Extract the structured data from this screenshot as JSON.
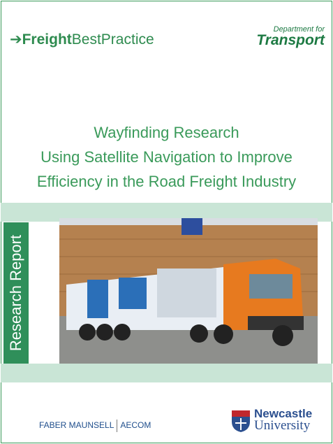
{
  "header": {
    "logo": {
      "bold": "Freight",
      "regular": "BestPractice"
    },
    "department": {
      "line1": "Department for",
      "line2": "Transport"
    }
  },
  "title": [
    "Wayfinding Research",
    "Using Satellite Navigation to Improve",
    "Efficiency in the Road Freight Industry"
  ],
  "side_label": "Research Report",
  "footer": {
    "partner1": "FABER MAUNSELL",
    "partner2": "AECOM",
    "university": {
      "line1": "Newcastle",
      "line2": "University"
    }
  }
}
